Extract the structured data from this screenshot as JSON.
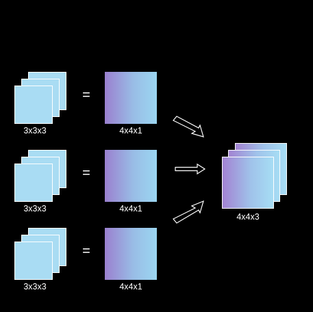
{
  "rows": [
    {
      "kernel_label": "3x3x3",
      "operator": "=",
      "map_label": "4x4x1"
    },
    {
      "kernel_label": "3x3x3",
      "operator": "=",
      "map_label": "4x4x1"
    },
    {
      "kernel_label": "3x3x3",
      "operator": "=",
      "map_label": "4x4x1"
    }
  ],
  "output": {
    "label": "4x4x3"
  },
  "colors": {
    "background": "#000000",
    "kernel_fill": "#a9dcf3",
    "map_gradient_start": "#9a80cf",
    "map_gradient_end": "#9bd6f1",
    "outline": "#ffffff"
  }
}
